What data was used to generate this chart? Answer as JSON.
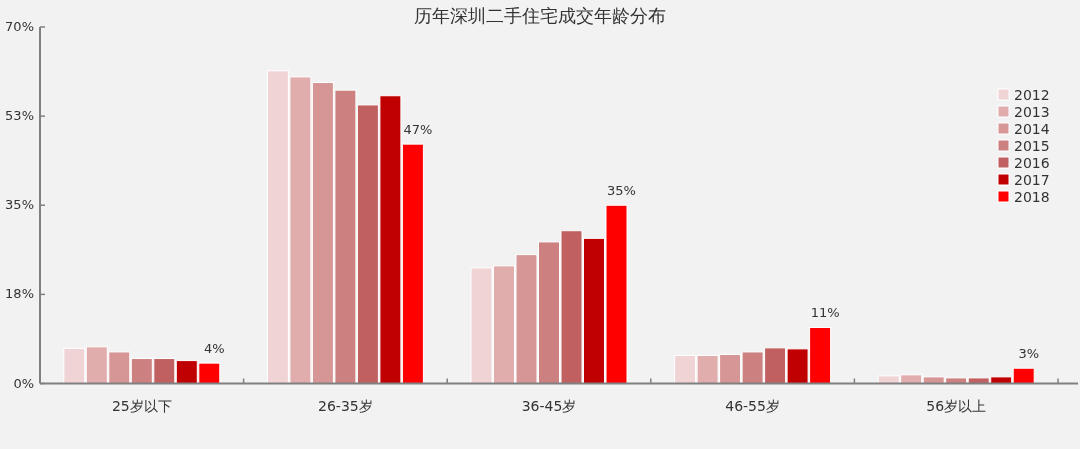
{
  "chart_data": {
    "type": "bar",
    "title": "历年深圳二手住宅成交年龄分布",
    "categories": [
      "25岁以下",
      "26-35岁",
      "36-45岁",
      "46-55岁",
      "56岁以上"
    ],
    "series": [
      {
        "name": "2012",
        "color": "#f0d4d5",
        "values": [
          6.9,
          61.4,
          22.7,
          5.5,
          1.5
        ]
      },
      {
        "name": "2013",
        "color": "#e0acac",
        "values": [
          7.2,
          60.2,
          23.1,
          5.5,
          1.7
        ]
      },
      {
        "name": "2014",
        "color": "#d69696",
        "values": [
          6.2,
          59.1,
          25.3,
          5.7,
          1.3
        ]
      },
      {
        "name": "2015",
        "color": "#cc8080",
        "values": [
          4.9,
          57.6,
          27.8,
          6.2,
          1.1
        ]
      },
      {
        "name": "2016",
        "color": "#c06060",
        "values": [
          4.9,
          54.7,
          30.0,
          7.0,
          1.1
        ]
      },
      {
        "name": "2017",
        "color": "#c00000",
        "values": [
          4.5,
          56.5,
          28.5,
          6.8,
          1.3
        ]
      },
      {
        "name": "2018",
        "color": "#ff0000",
        "values": [
          4,
          47,
          35,
          11,
          3
        ],
        "value_labels": [
          "4%",
          "47%",
          "35%",
          "11%",
          "3%"
        ]
      }
    ],
    "ylim": [
      0,
      70
    ],
    "yticks": [
      {
        "value": 0,
        "label": "0%"
      },
      {
        "value": 17.5,
        "label": "18%"
      },
      {
        "value": 35,
        "label": "35%"
      },
      {
        "value": 52.5,
        "label": "53%"
      },
      {
        "value": 70,
        "label": "70%"
      }
    ],
    "legend": "top right"
  }
}
